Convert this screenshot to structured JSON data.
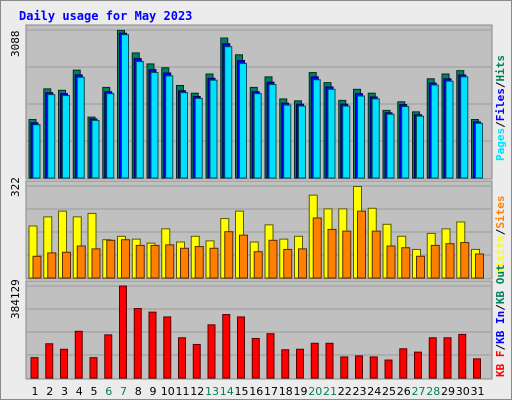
{
  "title": "Daily usage for May 2023",
  "colors": {
    "background": "#c0c0c0",
    "hits": "#00805c",
    "files": "#0000ff",
    "pages": "#00e0ff",
    "visits": "#ffff00",
    "sites": "#ff8000",
    "kbytes": "#ff0000",
    "weekend_label": "#00805c",
    "weekday_label": "#000000",
    "title": "#0000ff"
  },
  "chart_data": [
    {
      "type": "bar",
      "panel": "top",
      "ytick_label": "3088",
      "ylim": [
        0,
        3088
      ],
      "legend": [
        {
          "label": "Pages",
          "color": "#00e0ff"
        },
        {
          "label": "/",
          "color": "#000000"
        },
        {
          "label": "Files",
          "color": "#0000ff"
        },
        {
          "label": "/",
          "color": "#000000"
        },
        {
          "label": "Hits",
          "color": "#00805c"
        }
      ],
      "x": [
        "1",
        "2",
        "3",
        "4",
        "5",
        "6",
        "7",
        "8",
        "9",
        "10",
        "11",
        "12",
        "13",
        "14",
        "15",
        "16",
        "17",
        "18",
        "19",
        "20",
        "21",
        "22",
        "23",
        "24",
        "25",
        "26",
        "27",
        "28",
        "29",
        "30",
        "31"
      ],
      "series": [
        {
          "name": "Hits",
          "values": [
            1220,
            1860,
            1830,
            2250,
            1270,
            1890,
            3080,
            2610,
            2380,
            2300,
            1930,
            1770,
            2170,
            2920,
            2570,
            1890,
            2110,
            1650,
            1610,
            2200,
            1990,
            1620,
            1850,
            1770,
            1410,
            1590,
            1380,
            2070,
            2170,
            2240,
            1220
          ]
        },
        {
          "name": "Files",
          "values": [
            1150,
            1780,
            1760,
            2150,
            1230,
            1800,
            3020,
            2490,
            2260,
            2190,
            1820,
            1700,
            2080,
            2800,
            2450,
            1800,
            2000,
            1560,
            1540,
            2110,
            1900,
            1540,
            1760,
            1690,
            1360,
            1530,
            1320,
            1980,
            2070,
            2150,
            1170
          ]
        },
        {
          "name": "Pages",
          "values": [
            1110,
            1740,
            1720,
            2100,
            1200,
            1760,
            2990,
            2430,
            2200,
            2130,
            1780,
            1660,
            2040,
            2740,
            2390,
            1760,
            1950,
            1520,
            1500,
            2050,
            1850,
            1500,
            1710,
            1650,
            1330,
            1490,
            1290,
            1940,
            2020,
            2110,
            1140
          ]
        }
      ]
    },
    {
      "type": "bar",
      "panel": "middle",
      "ytick_label": "322",
      "ylim": [
        0,
        322
      ],
      "legend": [
        {
          "label": "Visits",
          "color": "#ffff00"
        },
        {
          "label": "/",
          "color": "#000000"
        },
        {
          "label": "Sites",
          "color": "#ff8000"
        }
      ],
      "x": [
        "1",
        "2",
        "3",
        "4",
        "5",
        "6",
        "7",
        "8",
        "9",
        "10",
        "11",
        "12",
        "13",
        "14",
        "15",
        "16",
        "17",
        "18",
        "19",
        "20",
        "21",
        "22",
        "23",
        "24",
        "25",
        "26",
        "27",
        "28",
        "29",
        "30",
        "31"
      ],
      "series": [
        {
          "name": "Visits",
          "values": [
            182,
            214,
            234,
            214,
            226,
            134,
            146,
            136,
            122,
            172,
            126,
            146,
            130,
            208,
            234,
            126,
            186,
            136,
            146,
            290,
            242,
            242,
            320,
            244,
            188,
            146,
            100,
            156,
            172,
            196,
            100
          ]
        },
        {
          "name": "Sites",
          "values": [
            76,
            88,
            90,
            112,
            102,
            132,
            134,
            114,
            114,
            116,
            104,
            110,
            104,
            162,
            150,
            92,
            132,
            100,
            102,
            210,
            170,
            164,
            234,
            164,
            112,
            106,
            76,
            114,
            120,
            124,
            84
          ]
        }
      ]
    },
    {
      "type": "bar",
      "panel": "bottom",
      "ytick_label": "384129",
      "ylim": [
        0,
        384129
      ],
      "legend": [
        {
          "label": "KB F",
          "color": "#ff0000"
        },
        {
          "label": "/",
          "color": "#000000"
        },
        {
          "label": "KB In",
          "color": "#0000ff"
        },
        {
          "label": "/",
          "color": "#000000"
        },
        {
          "label": "KB Out",
          "color": "#00805c"
        }
      ],
      "x": [
        "1",
        "2",
        "3",
        "4",
        "5",
        "6",
        "7",
        "8",
        "9",
        "10",
        "11",
        "12",
        "13",
        "14",
        "15",
        "16",
        "17",
        "18",
        "19",
        "20",
        "21",
        "22",
        "23",
        "24",
        "25",
        "26",
        "27",
        "28",
        "29",
        "30",
        "31"
      ],
      "series": [
        {
          "name": "KB F",
          "values": [
            85000,
            143000,
            120000,
            195000,
            85000,
            180000,
            384000,
            290000,
            275000,
            255000,
            168000,
            140000,
            222000,
            265000,
            255000,
            165000,
            185000,
            118000,
            120000,
            145000,
            145000,
            88000,
            92000,
            88000,
            75000,
            122000,
            108000,
            168000,
            168000,
            182000,
            80000
          ]
        }
      ]
    }
  ],
  "weekend_days": [
    "6",
    "7",
    "13",
    "14",
    "20",
    "21",
    "27",
    "28"
  ]
}
